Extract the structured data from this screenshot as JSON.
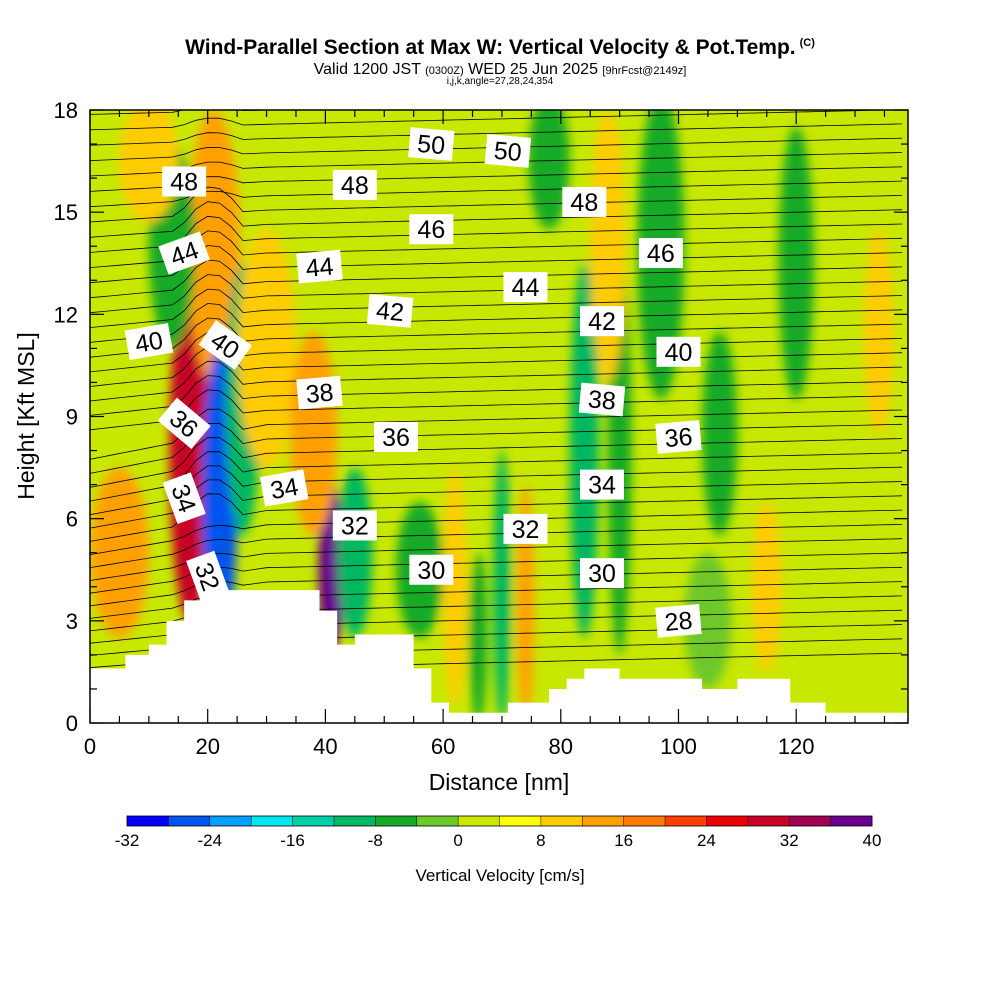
{
  "header": {
    "title": "Wind-Parallel Section at Max W: Vertical Velocity & Pot.Temp.",
    "copyright": "(C)",
    "valid_prefix": "Valid 1200 JST",
    "valid_utc": "(0300Z)",
    "valid_date": "WED 25 Jun 2025",
    "forecast": "[9hrFcst@2149z]",
    "indices": "i,j,k,angle=27,28,24,354"
  },
  "chart_data": {
    "type": "heatmap",
    "xlabel": "Distance [nm]",
    "ylabel": "Height [Kft MSL]",
    "xlim": [
      0,
      139
    ],
    "ylim": [
      0,
      18
    ],
    "x_ticks": [
      0,
      20,
      40,
      60,
      80,
      100,
      120
    ],
    "y_ticks": [
      0,
      3,
      6,
      9,
      12,
      15,
      18
    ],
    "colorbar": {
      "label": "Vertical Velocity [cm/s]",
      "ticks": [
        "-32",
        "-24",
        "-16",
        "-8",
        "0",
        "8",
        "16",
        "24",
        "32",
        "40"
      ],
      "min": -32,
      "max": 40,
      "colors": [
        "#0000ff",
        "#0055ee",
        "#00a0ff",
        "#00e8ee",
        "#00d0a8",
        "#00b860",
        "#14aa28",
        "#6ec82a",
        "#c8e800",
        "#ffff00",
        "#ffcc00",
        "#ffa000",
        "#ff7a00",
        "#ff4000",
        "#ee0000",
        "#c80028",
        "#a00050",
        "#6a0090"
      ]
    },
    "field_velocity_cm_s": {
      "background": 2,
      "cells": [
        {
          "x": 17,
          "y": 8.0,
          "w": 3.5,
          "h": 5.0,
          "v": 30
        },
        {
          "x": 19,
          "y": 11.0,
          "w": 3.0,
          "h": 3.5,
          "v": 28
        },
        {
          "x": 21,
          "y": 14.0,
          "w": 4.5,
          "h": 4.0,
          "v": 12
        },
        {
          "x": 22,
          "y": 6.5,
          "w": 3.0,
          "h": 4.5,
          "v": -26
        },
        {
          "x": 26,
          "y": 9.5,
          "w": 3.0,
          "h": 4.0,
          "v": -12
        },
        {
          "x": 30,
          "y": 11.0,
          "w": 5.0,
          "h": 3.5,
          "v": 8
        },
        {
          "x": 41,
          "y": 4.5,
          "w": 2.2,
          "h": 2.5,
          "v": 40
        },
        {
          "x": 38,
          "y": 8.5,
          "w": 4.0,
          "h": 3.0,
          "v": 12
        },
        {
          "x": 45,
          "y": 5.0,
          "w": 3.0,
          "h": 2.5,
          "v": -12
        },
        {
          "x": 14,
          "y": 14.0,
          "w": 4.0,
          "h": 3.0,
          "v": -8
        },
        {
          "x": 5,
          "y": 5.0,
          "w": 5.0,
          "h": 2.5,
          "v": 12
        },
        {
          "x": 10,
          "y": 16.5,
          "w": 5.0,
          "h": 1.8,
          "v": 8
        },
        {
          "x": 62,
          "y": 4.0,
          "w": 2.0,
          "h": 3.5,
          "v": 10
        },
        {
          "x": 66,
          "y": 2.5,
          "w": 1.5,
          "h": 2.5,
          "v": -8
        },
        {
          "x": 70,
          "y": 4.0,
          "w": 1.5,
          "h": 4.0,
          "v": -12
        },
        {
          "x": 74,
          "y": 3.5,
          "w": 1.5,
          "h": 3.5,
          "v": 12
        },
        {
          "x": 84,
          "y": 8.0,
          "w": 2.5,
          "h": 5.5,
          "v": -10
        },
        {
          "x": 90,
          "y": 8.0,
          "w": 2.0,
          "h": 6.0,
          "v": -8
        },
        {
          "x": 88,
          "y": 14.0,
          "w": 3.0,
          "h": 4.0,
          "v": 8
        },
        {
          "x": 78,
          "y": 16.5,
          "w": 3.5,
          "h": 2.0,
          "v": -8
        },
        {
          "x": 97,
          "y": 14.0,
          "w": 4.0,
          "h": 4.5,
          "v": -8
        },
        {
          "x": 107,
          "y": 8.5,
          "w": 3.0,
          "h": 3.0,
          "v": -8
        },
        {
          "x": 115,
          "y": 4.0,
          "w": 2.5,
          "h": 2.5,
          "v": 10
        },
        {
          "x": 120,
          "y": 13.5,
          "w": 3.0,
          "h": 4.0,
          "v": -8
        },
        {
          "x": 134,
          "y": 11.5,
          "w": 2.5,
          "h": 3.0,
          "v": 8
        },
        {
          "x": 56,
          "y": 4.5,
          "w": 4.0,
          "h": 2.0,
          "v": -6
        },
        {
          "x": 105,
          "y": 3.0,
          "w": 4.0,
          "h": 2.0,
          "v": -4
        }
      ]
    },
    "terrain_kft": {
      "x": [
        0,
        6,
        6,
        10,
        10,
        13,
        13,
        16,
        16,
        19,
        19,
        23,
        23,
        39,
        39,
        42,
        42,
        45,
        45,
        55,
        55,
        58,
        58,
        61,
        61,
        64,
        64,
        71,
        71,
        78,
        78,
        81,
        81,
        84,
        84,
        90,
        90,
        104,
        104,
        110,
        110,
        119,
        119,
        125,
        125,
        132,
        132,
        139
      ],
      "y": [
        1.6,
        1.6,
        2.0,
        2.0,
        2.3,
        2.3,
        3.0,
        3.0,
        3.6,
        3.6,
        3.9,
        3.9,
        3.9,
        3.9,
        3.3,
        3.3,
        2.3,
        2.3,
        2.6,
        2.6,
        1.6,
        1.6,
        0.6,
        0.6,
        0.3,
        0.3,
        0.3,
        0.3,
        0.6,
        0.6,
        1.0,
        1.0,
        1.3,
        1.3,
        1.6,
        1.6,
        1.3,
        1.3,
        1.0,
        1.0,
        1.3,
        1.3,
        0.6,
        0.6,
        0.3,
        0.3,
        0.3,
        0.3
      ]
    },
    "theta_contour_labels": [
      {
        "text": "48",
        "x": 16,
        "y": 15.9,
        "angle": 0
      },
      {
        "text": "48",
        "x": 45,
        "y": 15.8,
        "angle": 0
      },
      {
        "text": "48",
        "x": 84,
        "y": 15.3,
        "angle": 0
      },
      {
        "text": "50",
        "x": 58,
        "y": 17.0,
        "angle": 5
      },
      {
        "text": "50",
        "x": 71,
        "y": 16.8,
        "angle": 5
      },
      {
        "text": "46",
        "x": 58,
        "y": 14.5,
        "angle": 0
      },
      {
        "text": "46",
        "x": 97,
        "y": 13.8,
        "angle": 0
      },
      {
        "text": "44",
        "x": 16,
        "y": 13.8,
        "angle": -20
      },
      {
        "text": "44",
        "x": 39,
        "y": 13.4,
        "angle": -5
      },
      {
        "text": "44",
        "x": 74,
        "y": 12.8,
        "angle": 0
      },
      {
        "text": "42",
        "x": 51,
        "y": 12.1,
        "angle": 5
      },
      {
        "text": "42",
        "x": 87,
        "y": 11.8,
        "angle": 0
      },
      {
        "text": "40",
        "x": 10,
        "y": 11.2,
        "angle": -10
      },
      {
        "text": "40",
        "x": 23,
        "y": 11.1,
        "angle": 35
      },
      {
        "text": "40",
        "x": 100,
        "y": 10.9,
        "angle": 0
      },
      {
        "text": "38",
        "x": 39,
        "y": 9.7,
        "angle": -5
      },
      {
        "text": "38",
        "x": 87,
        "y": 9.5,
        "angle": 5
      },
      {
        "text": "36",
        "x": 16,
        "y": 8.8,
        "angle": 40
      },
      {
        "text": "36",
        "x": 52,
        "y": 8.4,
        "angle": 0
      },
      {
        "text": "36",
        "x": 100,
        "y": 8.4,
        "angle": -5
      },
      {
        "text": "34",
        "x": 16,
        "y": 6.6,
        "angle": 70
      },
      {
        "text": "34",
        "x": 33,
        "y": 6.9,
        "angle": -10
      },
      {
        "text": "34",
        "x": 87,
        "y": 7.0,
        "angle": 0
      },
      {
        "text": "32",
        "x": 20,
        "y": 4.3,
        "angle": 70
      },
      {
        "text": "32",
        "x": 45,
        "y": 5.8,
        "angle": 0
      },
      {
        "text": "32",
        "x": 74,
        "y": 5.7,
        "angle": 0
      },
      {
        "text": "30",
        "x": 58,
        "y": 4.5,
        "angle": 0
      },
      {
        "text": "30",
        "x": 87,
        "y": 4.4,
        "angle": 0
      },
      {
        "text": "28",
        "x": 100,
        "y": 3.0,
        "angle": -5
      }
    ]
  }
}
